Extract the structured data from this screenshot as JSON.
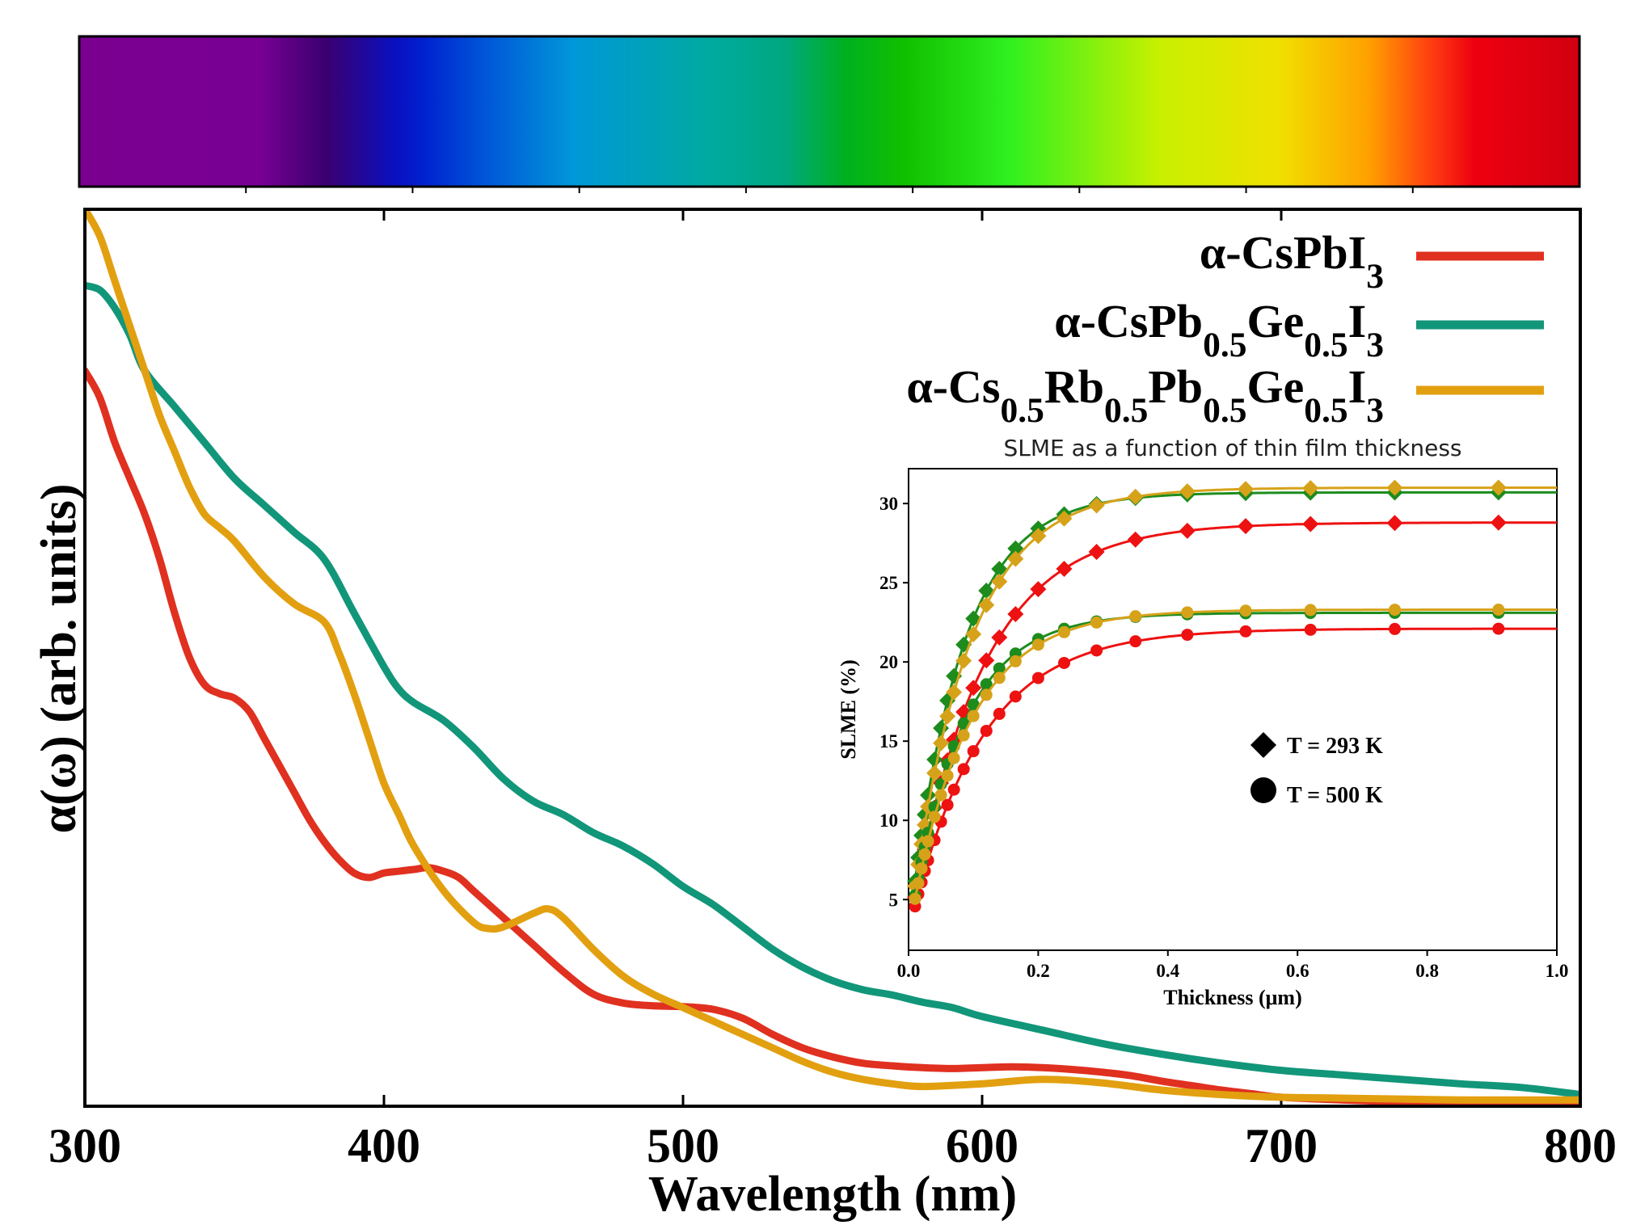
{
  "chart_data": [
    {
      "type": "line",
      "title": "",
      "xlabel": "Wavelength (nm)",
      "ylabel": "α(ω) (arb. units)",
      "xlim": [
        300,
        800
      ],
      "ylim": [
        0,
        100
      ],
      "xticks": [
        "300",
        "400",
        "500",
        "600",
        "700",
        "800"
      ],
      "colorbar": "visible spectrum",
      "legend_position": "top-right",
      "series": [
        {
          "name": "α-CsPbI3",
          "label_html": "α-CsPbI<tspan baseline-shift='sub' font-size='0.75em'>3</tspan>",
          "color": "#e03020",
          "x": [
            300,
            305,
            310,
            315,
            320,
            325,
            330,
            335,
            340,
            345,
            350,
            355,
            360,
            365,
            370,
            375,
            380,
            385,
            390,
            395,
            400,
            405,
            410,
            415,
            420,
            425,
            430,
            440,
            450,
            460,
            470,
            480,
            490,
            500,
            510,
            520,
            530,
            540,
            550,
            560,
            570,
            580,
            590,
            600,
            610,
            620,
            630,
            640,
            650,
            660,
            670,
            680,
            690,
            700,
            720,
            740,
            760,
            780,
            800
          ],
          "y": [
            82,
            79,
            74,
            70,
            66,
            61,
            55,
            50,
            47,
            46,
            45.5,
            44,
            41,
            38,
            35,
            32,
            29.5,
            27.5,
            26,
            25.5,
            26,
            26.2,
            26.4,
            26.6,
            26.2,
            25.5,
            24,
            21,
            18,
            15,
            12.5,
            11.5,
            11.2,
            11.1,
            10.8,
            9.8,
            8,
            6.5,
            5.5,
            4.8,
            4.5,
            4.3,
            4.2,
            4.3,
            4.4,
            4.3,
            4.1,
            3.8,
            3.4,
            2.8,
            2.3,
            1.8,
            1.4,
            1.0,
            0.7,
            0.5,
            0.4,
            0.3,
            0.2
          ]
        },
        {
          "name": "α-CsPb0.5Ge0.5I3",
          "label_html": "α-CsPb<tspan baseline-shift='sub' font-size='0.75em'>0.5</tspan>Ge<tspan baseline-shift='sub' font-size='0.75em'>0.5</tspan>I<tspan baseline-shift='sub' font-size='0.75em'>3</tspan>",
          "color": "#12967a",
          "x": [
            300,
            305,
            310,
            315,
            320,
            330,
            340,
            350,
            360,
            370,
            380,
            390,
            400,
            405,
            410,
            420,
            430,
            440,
            450,
            460,
            470,
            480,
            490,
            500,
            510,
            520,
            530,
            540,
            550,
            560,
            570,
            580,
            590,
            600,
            620,
            640,
            660,
            680,
            700,
            720,
            740,
            760,
            780,
            800
          ],
          "y": [
            91.5,
            91,
            89,
            86,
            82,
            78,
            74,
            70,
            67,
            64,
            61,
            55,
            49,
            46.5,
            45,
            43,
            40,
            36.5,
            34,
            32.5,
            30.5,
            29,
            27,
            24.5,
            22.5,
            20,
            17.5,
            15.5,
            14,
            13,
            12.4,
            11.6,
            11,
            10,
            8.5,
            7,
            5.8,
            4.8,
            4,
            3.5,
            3,
            2.5,
            2.1,
            1.3
          ]
        },
        {
          "name": "α-Cs0.5Rb0.5Pb0.5Ge0.5I3",
          "label_html": "α-Cs<tspan baseline-shift='sub' font-size='0.75em'>0.5</tspan>Rb<tspan baseline-shift='sub' font-size='0.75em'>0.5</tspan>Pb<tspan baseline-shift='sub' font-size='0.75em'>0.5</tspan>Ge<tspan baseline-shift='sub' font-size='0.75em'>0.5</tspan>I<tspan baseline-shift='sub' font-size='0.75em'>3</tspan>",
          "color": "#e2a010",
          "x": [
            300,
            305,
            310,
            315,
            320,
            325,
            330,
            335,
            340,
            345,
            350,
            360,
            370,
            380,
            385,
            390,
            395,
            400,
            405,
            410,
            420,
            430,
            435,
            440,
            450,
            455,
            460,
            470,
            480,
            490,
            500,
            510,
            520,
            530,
            540,
            550,
            560,
            570,
            580,
            600,
            620,
            640,
            660,
            680,
            700,
            720,
            740,
            760,
            780,
            800
          ],
          "y": [
            100,
            97,
            92,
            87,
            82,
            77,
            73,
            69,
            66,
            64.5,
            63,
            59,
            56,
            54,
            50.5,
            46,
            41,
            36,
            32.5,
            29,
            24,
            20.5,
            19.8,
            20,
            21.5,
            22,
            21,
            17.5,
            14.5,
            12.5,
            11,
            9.5,
            8,
            6.5,
            5,
            3.8,
            3,
            2.5,
            2.2,
            2.5,
            3,
            2.6,
            1.8,
            1.3,
            1,
            0.9,
            0.8,
            0.7,
            0.7,
            0.7
          ]
        }
      ]
    },
    {
      "type": "line",
      "title": "SLME as a function of thin film thickness",
      "xlabel": "Thickness (μm)",
      "ylabel": "SLME (%)",
      "xlim": [
        0.0,
        1.0
      ],
      "ylim": [
        1.8,
        32.2
      ],
      "xticks": [
        "0.0",
        "0.2",
        "0.4",
        "0.6",
        "0.8",
        "1.0"
      ],
      "yticks": [
        "5",
        "10",
        "15",
        "20",
        "25",
        "30"
      ],
      "legend_position": "lower-center",
      "markers": [
        {
          "symbol": "diamond",
          "label": "T = 293 K"
        },
        {
          "symbol": "circle",
          "label": "T = 500 K"
        }
      ],
      "series": [
        {
          "name": "α-CsPbI3, T = 293 K",
          "color": "#ee1111",
          "marker": "diamond",
          "sat": 28.8,
          "tau": 0.11
        },
        {
          "name": "α-CsPb0.5Ge0.5I3, T = 293 K",
          "color": "#1d8c1d",
          "marker": "diamond",
          "sat": 30.7,
          "tau": 0.08
        },
        {
          "name": "α-Cs0.5Rb0.5Pb0.5Ge0.5I3, T = 293 K",
          "color": "#d6a21a",
          "marker": "diamond",
          "sat": 31.0,
          "tau": 0.09
        },
        {
          "name": "α-CsPbI3, T = 500 K",
          "color": "#ee1111",
          "marker": "circle",
          "sat": 22.1,
          "tau": 0.11
        },
        {
          "name": "α-CsPb0.5Ge0.5I3, T = 500 K",
          "color": "#1d8c1d",
          "marker": "circle",
          "sat": 23.1,
          "tau": 0.08
        },
        {
          "name": "α-Cs0.5Rb0.5Pb0.5Ge0.5I3, T = 500 K",
          "color": "#d6a21a",
          "marker": "circle",
          "sat": 23.3,
          "tau": 0.09
        }
      ],
      "thickness_points": [
        0.01,
        0.015,
        0.02,
        0.025,
        0.03,
        0.04,
        0.05,
        0.06,
        0.07,
        0.085,
        0.1,
        0.12,
        0.14,
        0.165,
        0.2,
        0.24,
        0.29,
        0.35,
        0.43,
        0.52,
        0.62,
        0.75,
        0.91
      ]
    }
  ]
}
